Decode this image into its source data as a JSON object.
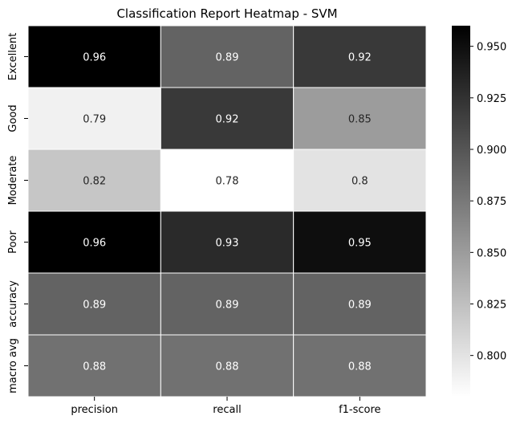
{
  "chart_data": {
    "type": "heatmap",
    "title": "Classification Report Heatmap - SVM",
    "rows": [
      "Excellent",
      "Good",
      "Moderate",
      "Poor",
      "accuracy",
      "macro avg"
    ],
    "columns": [
      "precision",
      "recall",
      "f1-score"
    ],
    "values": [
      [
        0.96,
        0.89,
        0.92
      ],
      [
        0.79,
        0.92,
        0.85
      ],
      [
        0.82,
        0.78,
        0.8
      ],
      [
        0.96,
        0.93,
        0.95
      ],
      [
        0.89,
        0.89,
        0.89
      ],
      [
        0.88,
        0.88,
        0.88
      ]
    ],
    "cell_labels": [
      [
        "0.96",
        "0.89",
        "0.92"
      ],
      [
        "0.79",
        "0.92",
        "0.85"
      ],
      [
        "0.82",
        "0.78",
        "0.8"
      ],
      [
        "0.96",
        "0.93",
        "0.95"
      ],
      [
        "0.89",
        "0.89",
        "0.89"
      ],
      [
        "0.88",
        "0.88",
        "0.88"
      ]
    ],
    "colorscale": {
      "name": "Greys",
      "vmin": 0.78,
      "vmax": 0.96,
      "low_color": "#ffffff",
      "high_color": "#000000"
    },
    "colorbar_ticks": [
      "0.800",
      "0.825",
      "0.850",
      "0.875",
      "0.900",
      "0.925",
      "0.950"
    ],
    "colorbar_tick_values": [
      0.8,
      0.825,
      0.85,
      0.875,
      0.9,
      0.925,
      0.95
    ],
    "xlabel": "",
    "ylabel": "",
    "grid": false,
    "cell_border_color": "#ffffff"
  }
}
